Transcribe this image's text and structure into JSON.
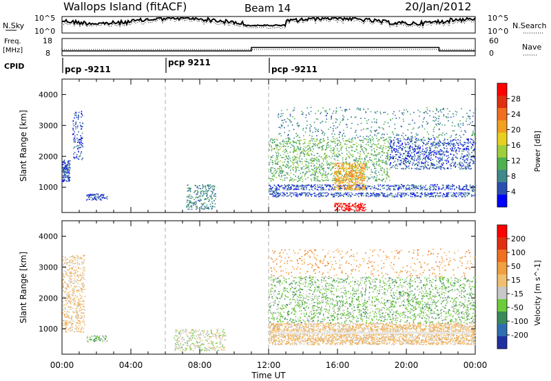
{
  "header": {
    "site": "Wallops Island (fitACF)",
    "beam": "Beam 14",
    "date": "20/Jan/2012"
  },
  "summary_panel": {
    "nsky_label": "N.Sky",
    "nsky_ticks": [
      "10^5",
      "10^0"
    ],
    "nsearch_label": "N.Search",
    "nsearch_ticks": [
      "10^5",
      "10^0"
    ],
    "freq_label": [
      "Freq.",
      "[MHz]"
    ],
    "freq_ticks": [
      "18",
      "8"
    ],
    "nave_label": "Nave",
    "nave_ticks": [
      "60",
      "0"
    ],
    "cpid_label": "CPID",
    "cpid_segments": [
      {
        "start_hour": 0,
        "label": "pcp -9211"
      },
      {
        "start_hour": 6,
        "label": "pcp 9211"
      },
      {
        "start_hour": 12,
        "label": "pcp -9211"
      }
    ],
    "frequency_steps": [
      {
        "start_hour": 0,
        "end_hour": 11,
        "value": "lower"
      },
      {
        "start_hour": 11,
        "end_hour": 21.9,
        "value": "higher"
      },
      {
        "start_hour": 21.9,
        "end_hour": 24,
        "value": "lower"
      }
    ]
  },
  "chart_data": [
    {
      "type": "heatmap",
      "title": "",
      "xlabel": "Time UT",
      "ylabel": "Slant Range [km]",
      "x_ticks": [
        "00:00",
        "04:00",
        "08:00",
        "12:00",
        "16:00",
        "20:00",
        "00:00"
      ],
      "xlim": [
        0,
        24
      ],
      "y_ticks": [
        "1000",
        "2000",
        "3000",
        "4000"
      ],
      "ylim": [
        180,
        4500
      ],
      "colorbar_label": "Power [dB]",
      "colorbar_ticks": [
        "4",
        "8",
        "12",
        "16",
        "20",
        "24",
        "28"
      ],
      "colorbar_colors": [
        "#0000ff",
        "#2b4fae",
        "#3e8a8a",
        "#4fb050",
        "#9ecf3a",
        "#e8d020",
        "#f2a020",
        "#f07020",
        "#e03010",
        "#ff0000"
      ],
      "scatter_regions": [
        {
          "t0": 0.0,
          "t1": 0.45,
          "r0": 1200,
          "r1": 1900,
          "level": 1,
          "density": 1
        },
        {
          "t0": 0.6,
          "t1": 1.2,
          "r0": 1900,
          "r1": 3500,
          "level": 1,
          "density": 0.3
        },
        {
          "t0": 1.4,
          "t1": 2.6,
          "r0": 600,
          "r1": 800,
          "level": 1,
          "density": 0.8
        },
        {
          "t0": 7.2,
          "t1": 8.9,
          "r0": 300,
          "r1": 1100,
          "level": 2,
          "density": 0.4
        },
        {
          "t0": 12.0,
          "t1": 24.0,
          "r0": 700,
          "r1": 1100,
          "level": 1,
          "density": 0.6
        },
        {
          "t0": 12.0,
          "t1": 19.0,
          "r0": 1200,
          "r1": 2600,
          "level": 3,
          "density": 0.3
        },
        {
          "t0": 19.0,
          "t1": 24.0,
          "r0": 1600,
          "r1": 2600,
          "level": 1,
          "density": 0.4
        },
        {
          "t0": 15.8,
          "t1": 17.6,
          "r0": 900,
          "r1": 1800,
          "level": 6,
          "density": 0.7
        },
        {
          "t0": 15.8,
          "t1": 17.6,
          "r0": 250,
          "r1": 500,
          "level": 9,
          "density": 0.9
        },
        {
          "t0": 12.5,
          "t1": 24.0,
          "r0": 2600,
          "r1": 3600,
          "level": 2,
          "density": 0.1
        }
      ]
    },
    {
      "type": "heatmap",
      "title": "",
      "xlabel": "Time UT",
      "ylabel": "Slant Range [km]",
      "x_ticks": [
        "00:00",
        "04:00",
        "08:00",
        "12:00",
        "16:00",
        "20:00",
        "00:00"
      ],
      "xlim": [
        0,
        24
      ],
      "y_ticks": [
        "1000",
        "2000",
        "3000",
        "4000"
      ],
      "ylim": [
        180,
        4500
      ],
      "colorbar_label": "Velocity [m s^-1]",
      "colorbar_ticks": [
        "200",
        "100",
        "50",
        "15",
        "-15",
        "-50",
        "-100",
        "-200"
      ],
      "colorbar_colors": [
        "#2030a0",
        "#2f6fb0",
        "#3a8a5a",
        "#6ccc3a",
        "#c8c8c8",
        "#f0c070",
        "#f0a040",
        "#f07020",
        "#e03010",
        "#ff0000"
      ],
      "scatter_regions": [
        {
          "t0": 0.0,
          "t1": 1.3,
          "r0": 900,
          "r1": 3400,
          "level": 5,
          "density": 0.4
        },
        {
          "t0": 1.4,
          "t1": 2.6,
          "r0": 600,
          "r1": 800,
          "level": 3,
          "density": 0.7
        },
        {
          "t0": 6.5,
          "t1": 9.5,
          "r0": 300,
          "r1": 1000,
          "level": 4,
          "density": 0.4
        },
        {
          "t0": 12.0,
          "t1": 24.0,
          "r0": 500,
          "r1": 1200,
          "level": 5,
          "density": 0.8
        },
        {
          "t0": 12.0,
          "t1": 24.0,
          "r0": 1200,
          "r1": 2700,
          "level": 3,
          "density": 0.3
        },
        {
          "t0": 12.0,
          "t1": 24.0,
          "r0": 2700,
          "r1": 3600,
          "level": 6,
          "density": 0.1
        }
      ]
    }
  ]
}
